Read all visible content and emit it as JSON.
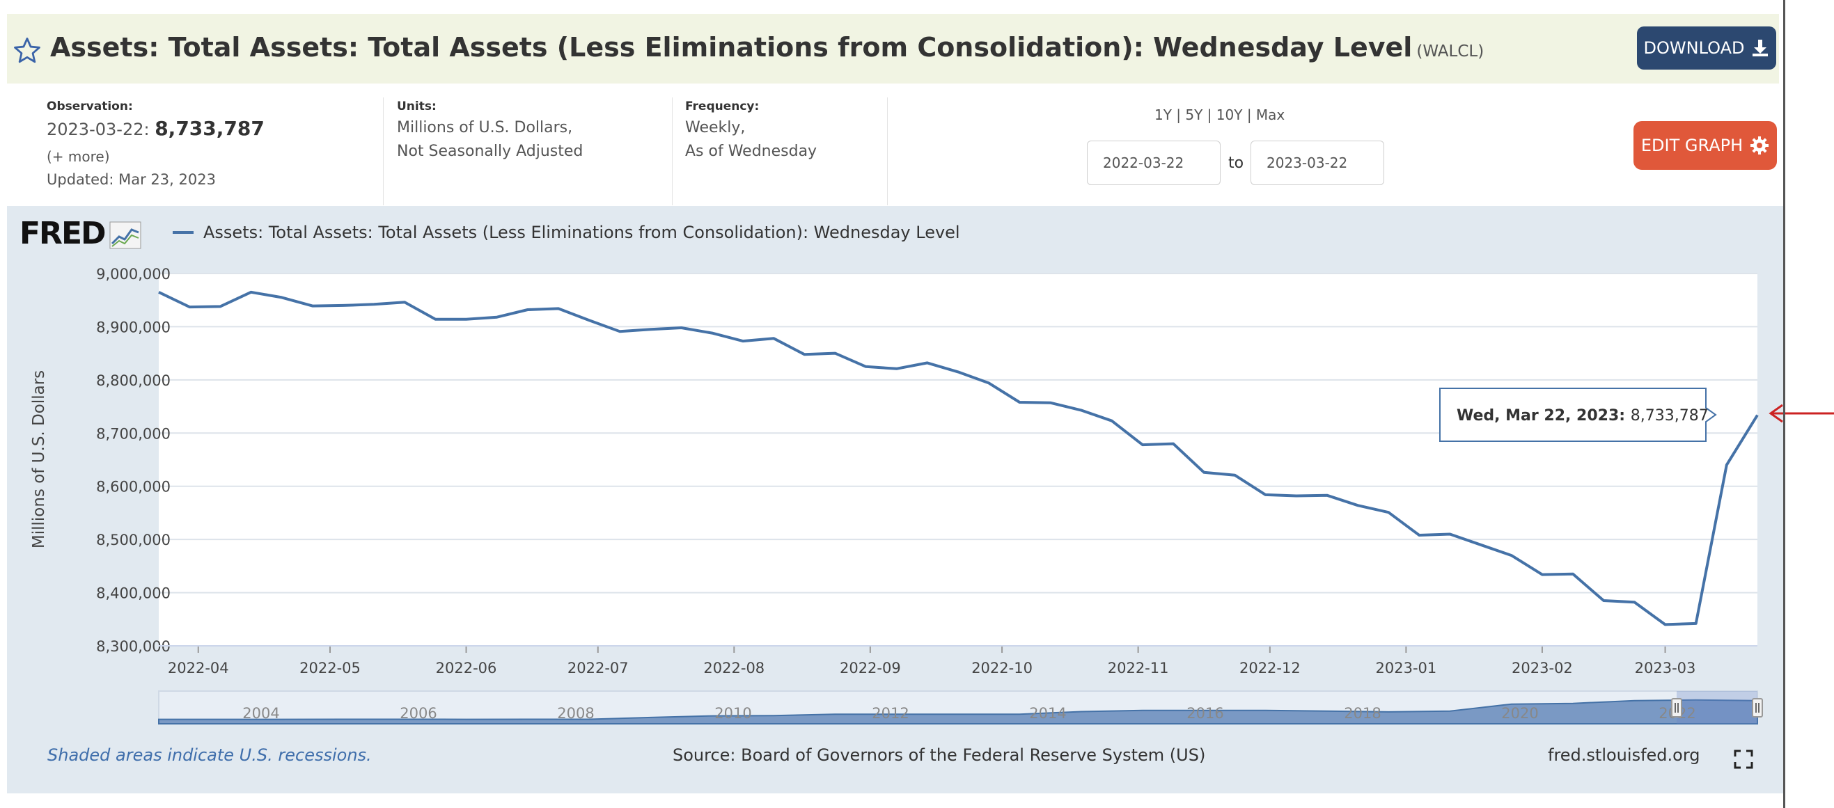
{
  "header": {
    "title": "Assets: Total Assets: Total Assets (Less Eliminations from Consolidation): Wednesday Level",
    "series_id": "(WALCL)",
    "download_label": "DOWNLOAD"
  },
  "meta": {
    "observation_label": "Observation:",
    "observation_date": "2023-03-22:",
    "observation_value": "8,733,787",
    "more_label": "(+ more)",
    "updated": "Updated: Mar 23, 2023",
    "units_label": "Units:",
    "units_line1": "Millions of U.S. Dollars,",
    "units_line2": "Not Seasonally Adjusted",
    "frequency_label": "Frequency:",
    "frequency_line1": "Weekly,",
    "frequency_line2": "As of Wednesday"
  },
  "controls": {
    "range_links": "1Y | 5Y | 10Y | Max",
    "start_date": "2022-03-22",
    "to_label": "to",
    "end_date": "2023-03-22",
    "edit_graph_label": "EDIT GRAPH"
  },
  "chart_data": {
    "type": "line",
    "title": "Assets: Total Assets: Total Assets (Less Eliminations from Consolidation): Wednesday Level",
    "xlabel": "",
    "ylabel": "Millions of U.S. Dollars",
    "ylim": [
      8300000,
      9000000
    ],
    "yticks": [
      "9,000,000",
      "8,900,000",
      "8,800,000",
      "8,700,000",
      "8,600,000",
      "8,500,000",
      "8,400,000",
      "8,300,000"
    ],
    "x_tick_labels": [
      "2022-04",
      "2022-05",
      "2022-06",
      "2022-07",
      "2022-08",
      "2022-09",
      "2022-10",
      "2022-11",
      "2022-12",
      "2023-01",
      "2023-02",
      "2023-03"
    ],
    "series": [
      {
        "name": "WALCL",
        "color": "#4572a7",
        "x": [
          "2022-03-23",
          "2022-03-30",
          "2022-04-06",
          "2022-04-13",
          "2022-04-20",
          "2022-04-27",
          "2022-05-04",
          "2022-05-11",
          "2022-05-18",
          "2022-05-25",
          "2022-06-01",
          "2022-06-08",
          "2022-06-15",
          "2022-06-22",
          "2022-06-29",
          "2022-07-06",
          "2022-07-13",
          "2022-07-20",
          "2022-07-27",
          "2022-08-03",
          "2022-08-10",
          "2022-08-17",
          "2022-08-24",
          "2022-08-31",
          "2022-09-07",
          "2022-09-14",
          "2022-09-21",
          "2022-09-28",
          "2022-10-05",
          "2022-10-12",
          "2022-10-19",
          "2022-10-26",
          "2022-11-02",
          "2022-11-09",
          "2022-11-16",
          "2022-11-23",
          "2022-11-30",
          "2022-12-07",
          "2022-12-14",
          "2022-12-21",
          "2022-12-28",
          "2023-01-04",
          "2023-01-11",
          "2023-01-18",
          "2023-01-25",
          "2023-02-01",
          "2023-02-08",
          "2023-02-15",
          "2023-02-22",
          "2023-03-01",
          "2023-03-08",
          "2023-03-15",
          "2023-03-22"
        ],
        "values": [
          8965000,
          8937000,
          8938000,
          8965000,
          8955000,
          8939000,
          8940000,
          8942000,
          8946000,
          8914000,
          8914000,
          8918000,
          8932000,
          8934000,
          8912000,
          8891000,
          8895000,
          8898000,
          8888000,
          8873000,
          8878000,
          8848000,
          8850000,
          8825000,
          8821000,
          8832000,
          8815000,
          8794000,
          8758000,
          8757000,
          8743000,
          8723000,
          8678000,
          8680000,
          8626000,
          8621000,
          8584000,
          8582000,
          8583000,
          8564000,
          8551000,
          8508000,
          8510000,
          8490000,
          8470000,
          8434000,
          8435000,
          8385000,
          8382000,
          8340000,
          8342000,
          8640000,
          8733787
        ]
      }
    ],
    "tooltip": {
      "date_label": "Wed, Mar 22, 2023:",
      "value_label": "8,733,787"
    },
    "navigator": {
      "year_labels": [
        "2004",
        "2006",
        "2008",
        "2010",
        "2012",
        "2014",
        "2016",
        "2018",
        "2020",
        "2022"
      ],
      "values": [
        0.72,
        0.72,
        0.72,
        0.73,
        0.73,
        0.72,
        0.73,
        0.74,
        1.5,
        2.2,
        2.3,
        2.9,
        2.9,
        2.9,
        2.9,
        4.0,
        4.5,
        4.5,
        4.5,
        4.2,
        3.9,
        4.2,
        7.2,
        7.5,
        8.7,
        8.96,
        8.7
      ]
    }
  },
  "footer": {
    "recession_note": "Shaded areas indicate U.S. recessions.",
    "source": "Source: Board of Governors of the Federal Reserve System (US)",
    "site": "fred.stlouisfed.org"
  },
  "colors": {
    "title_bar_bg": "#f1f4e3",
    "download_bg": "#2c4870",
    "edit_graph_bg": "#e0583a",
    "chart_panel_bg": "#e1e9f0",
    "series_line": "#4572a7",
    "annotation_arrow": "#cc2222"
  }
}
